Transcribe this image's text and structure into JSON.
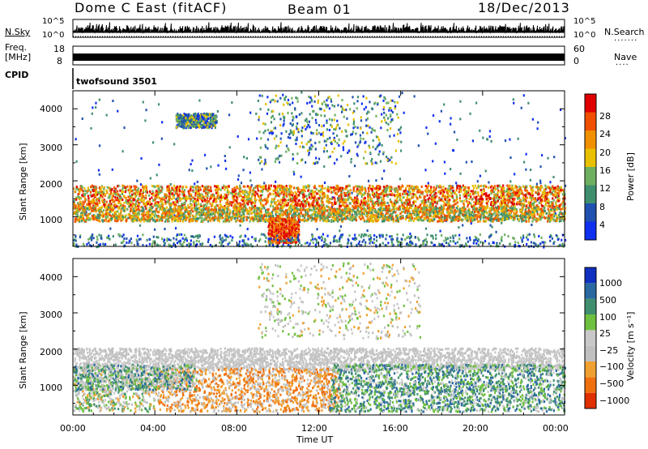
{
  "header": {
    "radar_title": "Dome C East (fitACF)",
    "beam": "Beam 01",
    "date": "18/Dec/2013"
  },
  "top_panels": {
    "nsky_label": "N.Sky",
    "nsky_ticks": [
      "10^5",
      "10^0"
    ],
    "nsearch_label": "N.Search",
    "nsearch_ticks": [
      "10^5",
      "10^0"
    ],
    "freq_label": "Freq.",
    "freq_unit": "[MHz]",
    "freq_ticks": [
      "18",
      "8"
    ],
    "nave_label": "Nave",
    "nave_ticks": [
      "60",
      "0"
    ],
    "cpid_label": "CPID",
    "cpid_value": "twofsound 3501"
  },
  "power_panel": {
    "ylabel": "Slant Range [km]",
    "yticks": [
      "4000",
      "3000",
      "2000",
      "1000"
    ],
    "colorbar_label": "Power [dB]",
    "colorbar_ticks": [
      "28",
      "24",
      "20",
      "16",
      "12",
      "8",
      "4"
    ],
    "colors": [
      "#1030f0",
      "#2050b0",
      "#3f8f6f",
      "#6fb060",
      "#e8c000",
      "#f09000",
      "#f05000",
      "#e00000"
    ]
  },
  "velocity_panel": {
    "ylabel": "Slant Range [km]",
    "yticks": [
      "4000",
      "3000",
      "2000",
      "1000"
    ],
    "colorbar_label": "Velocity [m s⁻¹]",
    "colorbar_ticks": [
      "1000",
      "500",
      "100",
      "25",
      "−25",
      "−100",
      "−500",
      "−1000"
    ],
    "colors": [
      "#1030c0",
      "#2a6aa0",
      "#3f8f6f",
      "#6fc040",
      "#c8c8c8",
      "#c0c0c0",
      "#f0a030",
      "#f07010",
      "#e03000"
    ]
  },
  "xaxis": {
    "label": "Time UT",
    "ticks": [
      "00:00",
      "04:00",
      "08:00",
      "12:00",
      "16:00",
      "20:00",
      "00:00"
    ]
  },
  "chart_data": {
    "type": "heatmap",
    "title": "Dome C East (fitACF)",
    "subtitle": "Beam 01 — 18/Dec/2013",
    "xlabel": "Time UT",
    "ylabel": "Slant Range [km]",
    "xlim": [
      "00:00",
      "24:00"
    ],
    "ylim": [
      180,
      4500
    ],
    "panels": [
      {
        "name": "Power [dB]",
        "clim": [
          0,
          30
        ],
        "features": [
          {
            "time_range": [
              "00:00",
              "24:00"
            ],
            "range_km": [
              1300,
              1900
            ],
            "value": "12-28",
            "note": "main band"
          },
          {
            "time_range": [
              "00:00",
              "24:00"
            ],
            "range_km": [
              900,
              1300
            ],
            "value": "8-24"
          },
          {
            "time_range": [
              "09:30",
              "11:00"
            ],
            "range_km": [
              300,
              1000
            ],
            "value": "20-28"
          },
          {
            "time_range": [
              "05:00",
              "07:00"
            ],
            "range_km": [
              3500,
              3900
            ],
            "value": "4-12"
          },
          {
            "time_range": [
              "09:00",
              "16:00"
            ],
            "range_km": [
              2500,
              4400
            ],
            "value": "8-16"
          }
        ]
      },
      {
        "name": "Velocity [m s⁻¹]",
        "clim": [
          -1000,
          1000
        ],
        "features": [
          {
            "time_range": [
              "00:00",
              "24:00"
            ],
            "range_km": [
              1500,
              2000
            ],
            "value": "-25 to 25"
          },
          {
            "time_range": [
              "06:00",
              "11:00"
            ],
            "range_km": [
              400,
              1500
            ],
            "value": "-500 to -100"
          },
          {
            "time_range": [
              "13:00",
              "20:00"
            ],
            "range_km": [
              400,
              1500
            ],
            "value": "100 to 500"
          }
        ]
      }
    ]
  }
}
